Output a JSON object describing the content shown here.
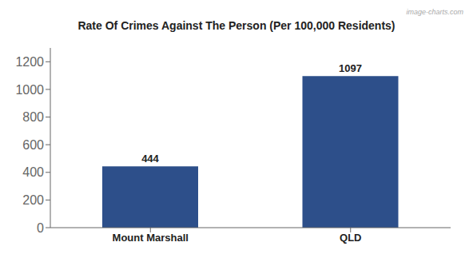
{
  "chart_data": {
    "type": "bar",
    "title": "Rate Of Crimes Against The Person (Per 100,000 Residents)",
    "categories": [
      "Mount Marshall",
      "QLD"
    ],
    "values": [
      444,
      1097
    ],
    "color": "#2d4f8a",
    "ylim": [
      0,
      1300
    ],
    "yticks": [
      0,
      200,
      400,
      600,
      800,
      1000,
      1200
    ],
    "grid": false,
    "data_labels": true,
    "annotations": [
      "image-charts.com"
    ]
  }
}
